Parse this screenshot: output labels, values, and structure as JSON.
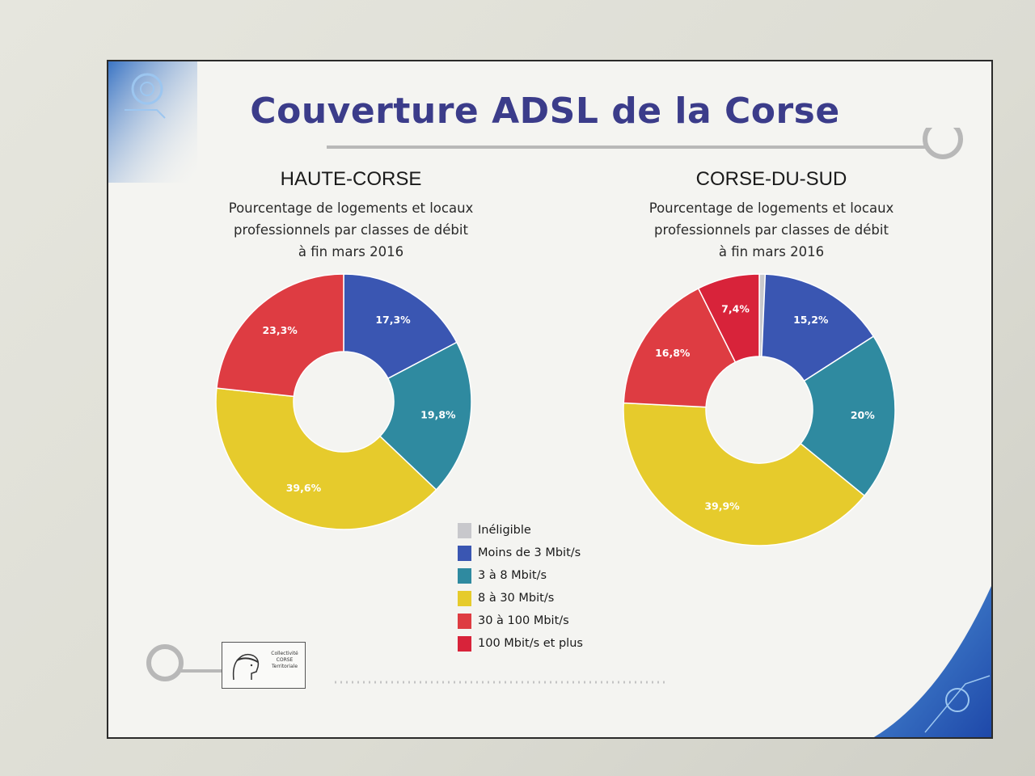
{
  "slide": {
    "title": "Couverture ADSL de la Corse"
  },
  "colors": {
    "title": "#3b3c8a",
    "ineligible": "#c8c8cc",
    "lt3": "#3a56b2",
    "3to8": "#2f8aa0",
    "8to30": "#e6cb2c",
    "30to100": "#de3c42",
    "100plus": "#d8233a"
  },
  "legend": {
    "items": [
      {
        "label": "Inéligible",
        "color": "#c8c8cc"
      },
      {
        "label": "Moins de 3 Mbit/s",
        "color": "#3a56b2"
      },
      {
        "label": "3 à 8 Mbit/s",
        "color": "#2f8aa0"
      },
      {
        "label": "8 à 30 Mbit/s",
        "color": "#e6cb2c"
      },
      {
        "label": "30 à 100 Mbit/s",
        "color": "#de3c42"
      },
      {
        "label": "100 Mbit/s et plus",
        "color": "#d8233a"
      }
    ]
  },
  "logo": {
    "icon": "moor-head-icon",
    "text": "Collectivité CORSE Territoriale"
  },
  "chart_data": [
    {
      "type": "pie",
      "variant": "donut",
      "title": "HAUTE-CORSE",
      "subtitle_lines": [
        "Pourcentage de logements et locaux",
        "professionnels par classes de débit",
        "à fin mars 2016"
      ],
      "categories": [
        "Inéligible",
        "Moins de 3 Mbit/s",
        "3 à 8 Mbit/s",
        "8 à 30 Mbit/s",
        "30 à 100 Mbit/s",
        "100 Mbit/s et plus"
      ],
      "values": [
        0,
        17.3,
        19.8,
        39.6,
        23.3,
        0
      ],
      "labels": [
        "",
        "17,3%",
        "19,8%",
        "39,6%",
        "23,3%",
        ""
      ]
    },
    {
      "type": "pie",
      "variant": "donut",
      "title": "CORSE-DU-SUD",
      "subtitle_lines": [
        "Pourcentage de logements et locaux",
        "professionnels par classes de débit",
        "à fin mars 2016"
      ],
      "categories": [
        "Inéligible",
        "Moins de 3 Mbit/s",
        "3 à 8 Mbit/s",
        "8 à 30 Mbit/s",
        "30 à 100 Mbit/s",
        "100 Mbit/s et plus"
      ],
      "values": [
        0.7,
        15.2,
        20,
        39.9,
        16.8,
        7.4
      ],
      "labels": [
        "",
        "15,2%",
        "20%",
        "39,9%",
        "16,8%",
        "7,4%"
      ]
    }
  ]
}
